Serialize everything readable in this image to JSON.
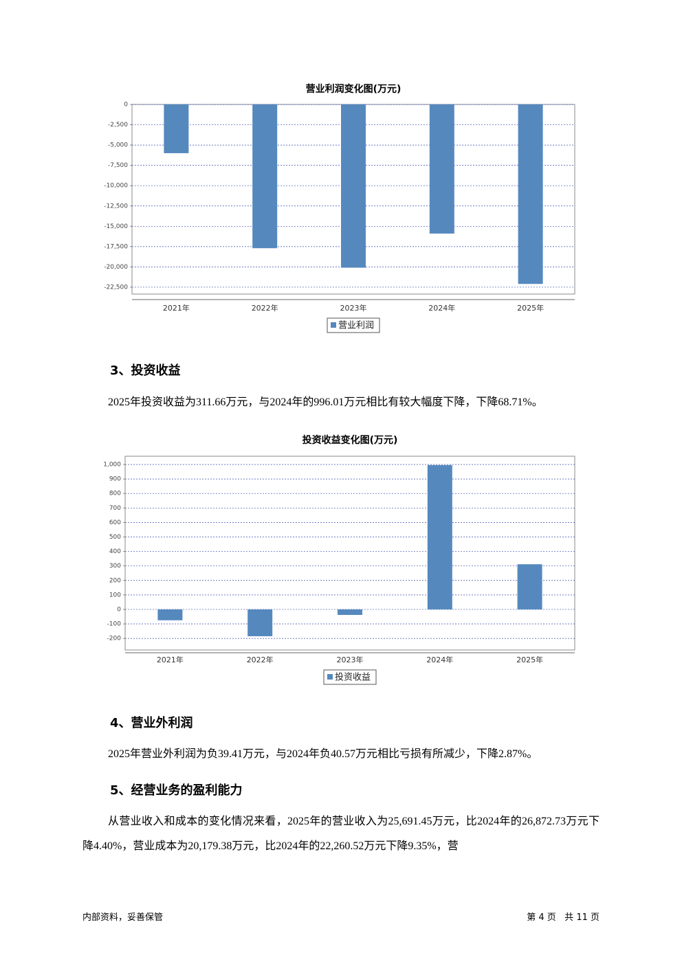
{
  "chart_data": [
    {
      "type": "bar",
      "title": "营业利润变化图(万元)",
      "categories": [
        "2021年",
        "2022年",
        "2023年",
        "2024年",
        "2025年"
      ],
      "series": [
        {
          "name": "营业利润",
          "color": "#5589be",
          "values": [
            -6000,
            -17700,
            -20100,
            -15900,
            -22100
          ]
        }
      ],
      "ylim": [
        -23350,
        0
      ],
      "yticks": [
        0,
        {
          "value": -2500,
          "label": "-2,500"
        },
        {
          "value": -5000,
          "label": "-5,000"
        },
        {
          "value": -7500,
          "label": "-7,500"
        },
        {
          "value": -10000,
          "label": "-10,000"
        },
        {
          "value": -12500,
          "label": "-12,500"
        },
        {
          "value": -15000,
          "label": "-15,000"
        },
        {
          "value": -17500,
          "label": "-17,500"
        },
        {
          "value": -20000,
          "label": "-20,000"
        },
        {
          "value": -22500,
          "label": "-22,500"
        }
      ],
      "grid": true
    },
    {
      "type": "bar",
      "title": "投资收益变化图(万元)",
      "categories": [
        "2021年",
        "2022年",
        "2023年",
        "2024年",
        "2025年"
      ],
      "series": [
        {
          "name": "投资收益",
          "color": "#5589be",
          "values": [
            -75,
            -185,
            -38,
            996.01,
            311.66
          ]
        }
      ],
      "ylim": [
        -280,
        1057
      ],
      "yticks": [
        {
          "value": 1000,
          "label": "1,000"
        },
        900,
        800,
        700,
        600,
        500,
        400,
        300,
        200,
        100,
        0,
        -100,
        -200
      ],
      "grid": true
    }
  ],
  "sections": [
    {
      "heading": "3、投资收益",
      "paragraph": "2025年投资收益为311.66万元，与2024年的996.01万元相比有较大幅度下降，下降68.71%。"
    },
    {
      "heading": "4、营业外利润",
      "paragraph": "2025年营业外利润为负39.41万元，与2024年负40.57万元相比亏损有所减少，下降2.87%。"
    },
    {
      "heading": "5、经营业务的盈利能力",
      "paragraph": "从营业收入和成本的变化情况来看，2025年的营业收入为25,691.45万元，比2024年的26,872.73万元下降4.40%，营业成本为20,179.38万元，比2024年的22,260.52万元下降9.35%，营"
    }
  ],
  "footer": {
    "left": "内部资料，妥善保管",
    "right": "第 4 页   共 11 页"
  }
}
